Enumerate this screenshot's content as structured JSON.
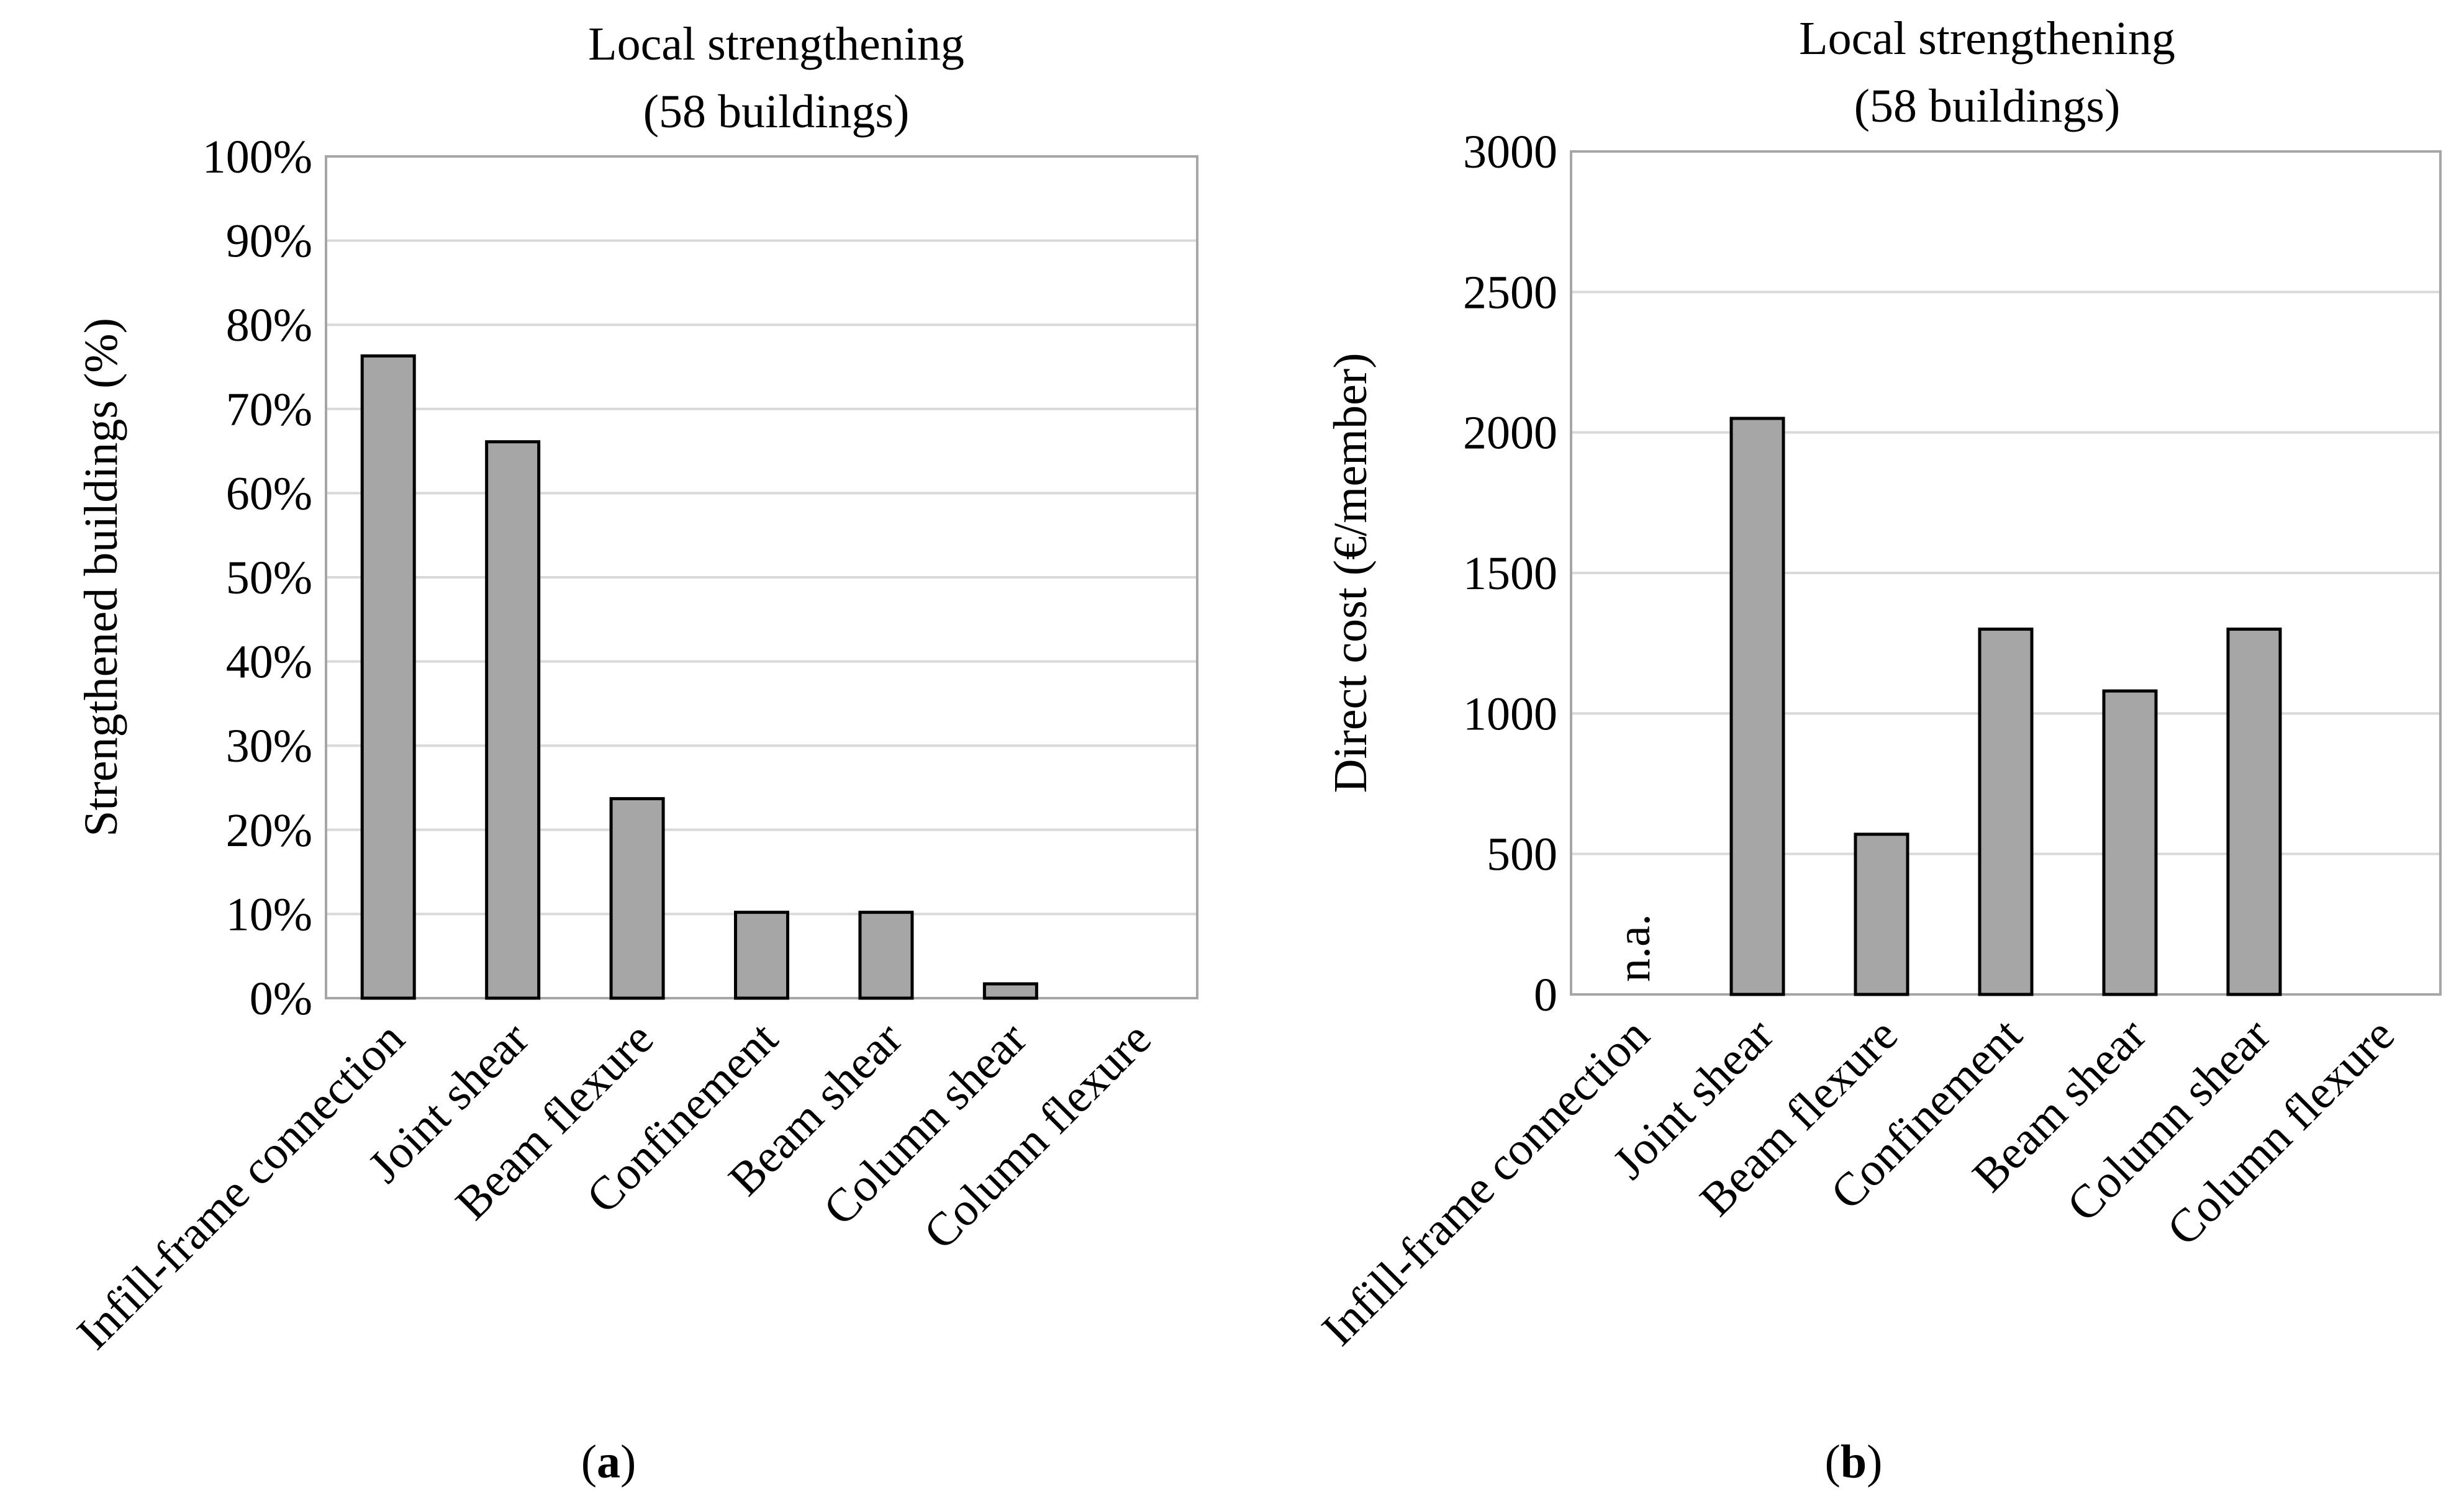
{
  "chart_data": [
    {
      "type": "bar",
      "panel_label": "(a)",
      "panel_letter": "a",
      "title_lines": [
        "Local strengthening",
        "(58 buildings)"
      ],
      "xlabel": "",
      "ylabel": "Strengthened buildings (%)",
      "categories": [
        "Infill-frame connection",
        "Joint shear",
        "Beam flexure",
        "Confinement",
        "Beam shear",
        "Column shear",
        "Column flexure"
      ],
      "values": [
        76.3,
        66.1,
        23.7,
        10.2,
        10.2,
        1.7,
        0
      ],
      "ylim": [
        0,
        100
      ],
      "yticks": [
        "0%",
        "10%",
        "20%",
        "30%",
        "40%",
        "50%",
        "60%",
        "70%",
        "80%",
        "90%",
        "100%"
      ],
      "grid": true,
      "annotations": []
    },
    {
      "type": "bar",
      "panel_label": "(b)",
      "panel_letter": "b",
      "title_lines": [
        "Local strengthening",
        "(58 buildings)"
      ],
      "xlabel": "",
      "ylabel": "Direct cost (€/member)",
      "categories": [
        "Infill-frame connection",
        "Joint shear",
        "Beam flexure",
        "Confinement",
        "Beam shear",
        "Column shear",
        "Column flexure"
      ],
      "values": [
        null,
        2050,
        570,
        1300,
        1080,
        1300,
        0
      ],
      "ylim": [
        0,
        3000
      ],
      "yticks": [
        "0",
        "500",
        "1000",
        "1500",
        "2000",
        "2500",
        "3000"
      ],
      "grid": true,
      "annotations": [
        {
          "category_index": 0,
          "text": "n.a."
        }
      ]
    }
  ],
  "colors": {
    "bar_fill": "#a6a6a6",
    "bar_stroke": "#000000",
    "grid": "#d9d9d9",
    "frame": "#a6a6a6"
  }
}
